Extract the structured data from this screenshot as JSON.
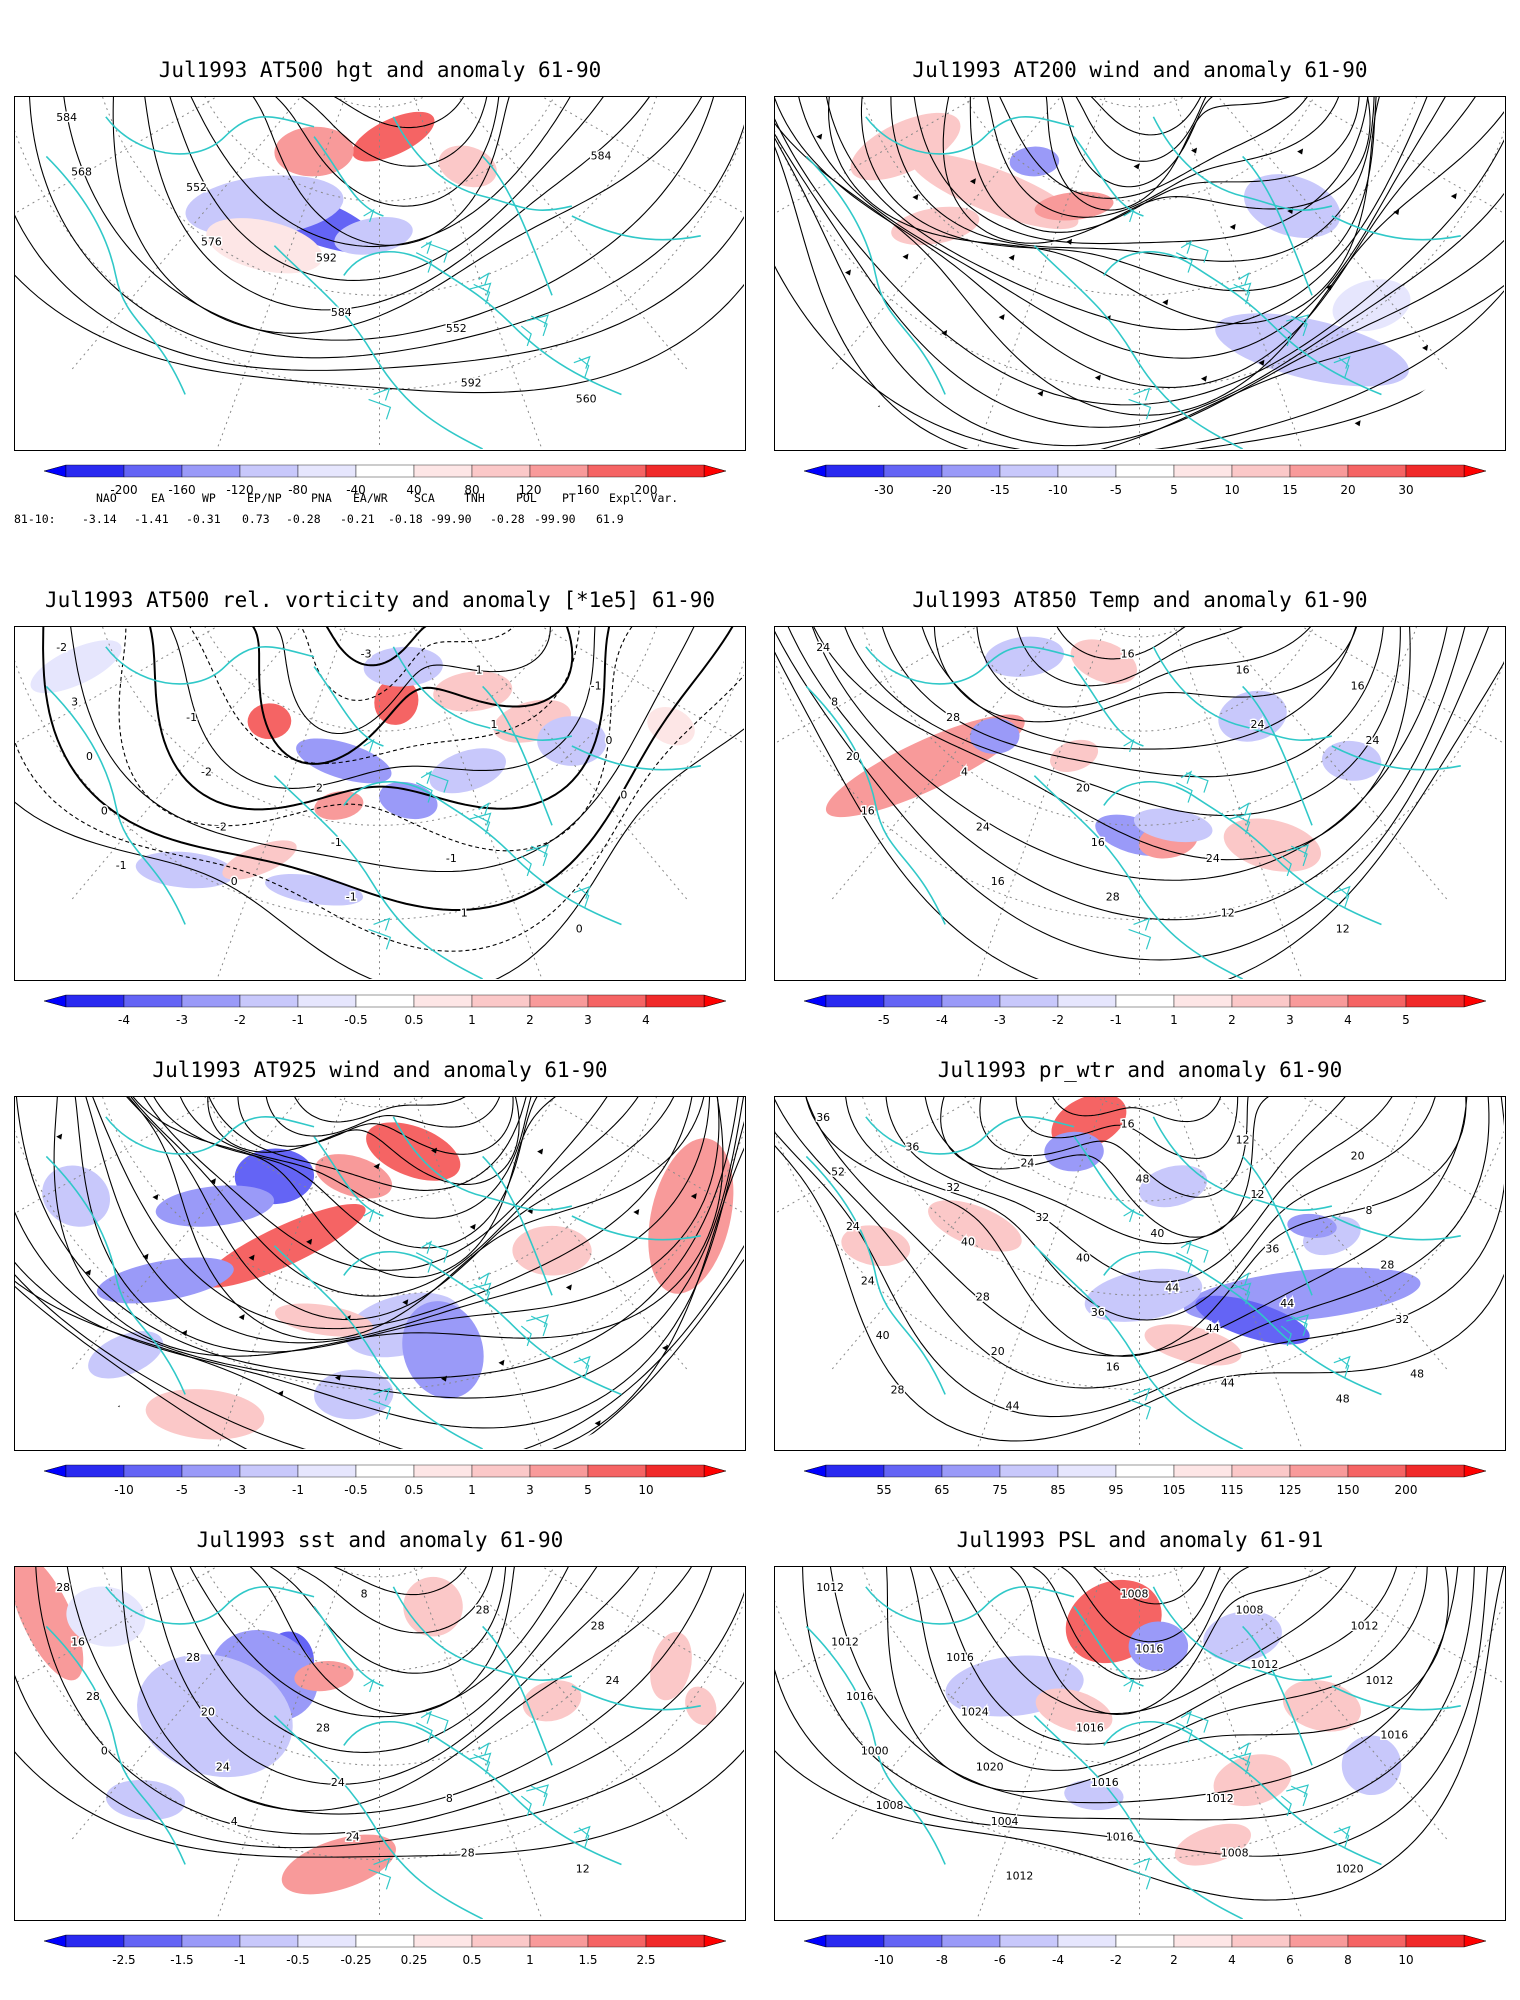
{
  "colors": {
    "coast": "#30c8c8",
    "contour": "#000000",
    "blue": [
      "#2a2af0",
      "#6464f5",
      "#9a9af8",
      "#c8c8fb",
      "#e6e6fd"
    ],
    "red": [
      "#fde6e6",
      "#fbc8c8",
      "#f89a9a",
      "#f56464",
      "#f02a2a"
    ]
  },
  "panels": [
    {
      "title": "Jul1993 AT500 hgt and anomaly 61-90",
      "icon": "contour-map",
      "contour_labels": [
        "584",
        "552",
        "592",
        "552",
        "560",
        "568",
        "576",
        "584",
        "592",
        "584"
      ],
      "colorbar": [
        "-200",
        "-160",
        "-120",
        "-80",
        "-40",
        "40",
        "80",
        "120",
        "160",
        "200"
      ]
    },
    {
      "title": "Jul1993 AT200 wind and anomaly 61-90",
      "icon": "streamline-map",
      "contour_labels": [],
      "colorbar": [
        "-30",
        "-20",
        "-15",
        "-10",
        "-5",
        "5",
        "10",
        "15",
        "20",
        "30"
      ]
    },
    {
      "title": "Jul1993 AT500 rel. vorticity and anomaly [*1e5] 61-90",
      "icon": "contour-map",
      "contour_labels": [
        "-2",
        "-1",
        "2",
        "-1",
        "0",
        "3",
        "-2",
        "-1",
        "1",
        "-1",
        "0",
        "-2",
        "-1",
        "1",
        "0",
        "0",
        "0",
        "-3",
        "1",
        "0",
        "-1"
      ],
      "colorbar": [
        "-4",
        "-3",
        "-2",
        "-1",
        "-0.5",
        "0.5",
        "1",
        "2",
        "3",
        "4"
      ]
    },
    {
      "title": "Jul1993 AT850 Temp and anomaly 61-90",
      "icon": "contour-map",
      "contour_labels": [
        "24",
        "28",
        "20",
        "24",
        "12",
        "8",
        "4",
        "16",
        "12",
        "16",
        "20",
        "24",
        "28",
        "16",
        "24",
        "16",
        "16",
        "16",
        "24"
      ],
      "colorbar": [
        "-5",
        "-4",
        "-3",
        "-2",
        "-1",
        "1",
        "2",
        "3",
        "4",
        "5"
      ]
    },
    {
      "title": "Jul1993 AT925 wind and anomaly 61-90",
      "icon": "streamline-map",
      "contour_labels": [],
      "colorbar": [
        "-10",
        "-5",
        "-3",
        "-1",
        "-0.5",
        "0.5",
        "1",
        "3",
        "5",
        "10"
      ]
    },
    {
      "title": "Jul1993 pr_wtr and anomaly 61-90",
      "icon": "contour-map",
      "contour_labels": [
        "36",
        "32",
        "40",
        "44",
        "48",
        "52",
        "40",
        "36",
        "44",
        "20",
        "24",
        "28",
        "16",
        "12",
        "8",
        "24",
        "20",
        "16",
        "12",
        "28",
        "40",
        "44",
        "48",
        "36",
        "32",
        "28",
        "24",
        "40",
        "44",
        "48",
        "36",
        "32",
        "44"
      ],
      "colorbar": [
        "55",
        "65",
        "75",
        "85",
        "95",
        "105",
        "115",
        "125",
        "150",
        "200"
      ]
    },
    {
      "title": "Jul1993 sst and anomaly 61-90",
      "icon": "contour-map",
      "contour_labels": [
        "28",
        "28",
        "28",
        "8",
        "12",
        "16",
        "20",
        "24",
        "28",
        "28",
        "28",
        "24",
        "24",
        "28",
        "24",
        "0",
        "4",
        "8"
      ],
      "colorbar": [
        "-2.5",
        "-1.5",
        "-1",
        "-0.5",
        "-0.25",
        "0.25",
        "0.5",
        "1",
        "1.5",
        "2.5"
      ]
    },
    {
      "title": "Jul1993 PSL and anomaly 61-91",
      "icon": "contour-map",
      "contour_labels": [
        "1012",
        "1016",
        "1016",
        "1012",
        "1020",
        "1012",
        "1024",
        "1016",
        "1008",
        "1012",
        "1016",
        "1020",
        "1016",
        "1008",
        "1012",
        "1000",
        "1004",
        "1008",
        "1012",
        "1016",
        "1008",
        "1012",
        "1016"
      ],
      "colorbar": [
        "-10",
        "-8",
        "-6",
        "-4",
        "-2",
        "2",
        "4",
        "6",
        "8",
        "10"
      ]
    }
  ],
  "teleconnection": {
    "headers": [
      "NAO",
      "EA",
      "WP",
      "EP/NP",
      "PNA",
      "EA/WR",
      "SCA",
      "TNH",
      "POL",
      "PT",
      "Expl. Var."
    ],
    "row_label": "81-10:",
    "values": [
      "-3.14",
      "-1.41",
      "-0.31",
      "0.73",
      "-0.28",
      "-0.21",
      "-0.18",
      "-99.90",
      "-0.28",
      "-99.90",
      "61.9"
    ]
  }
}
